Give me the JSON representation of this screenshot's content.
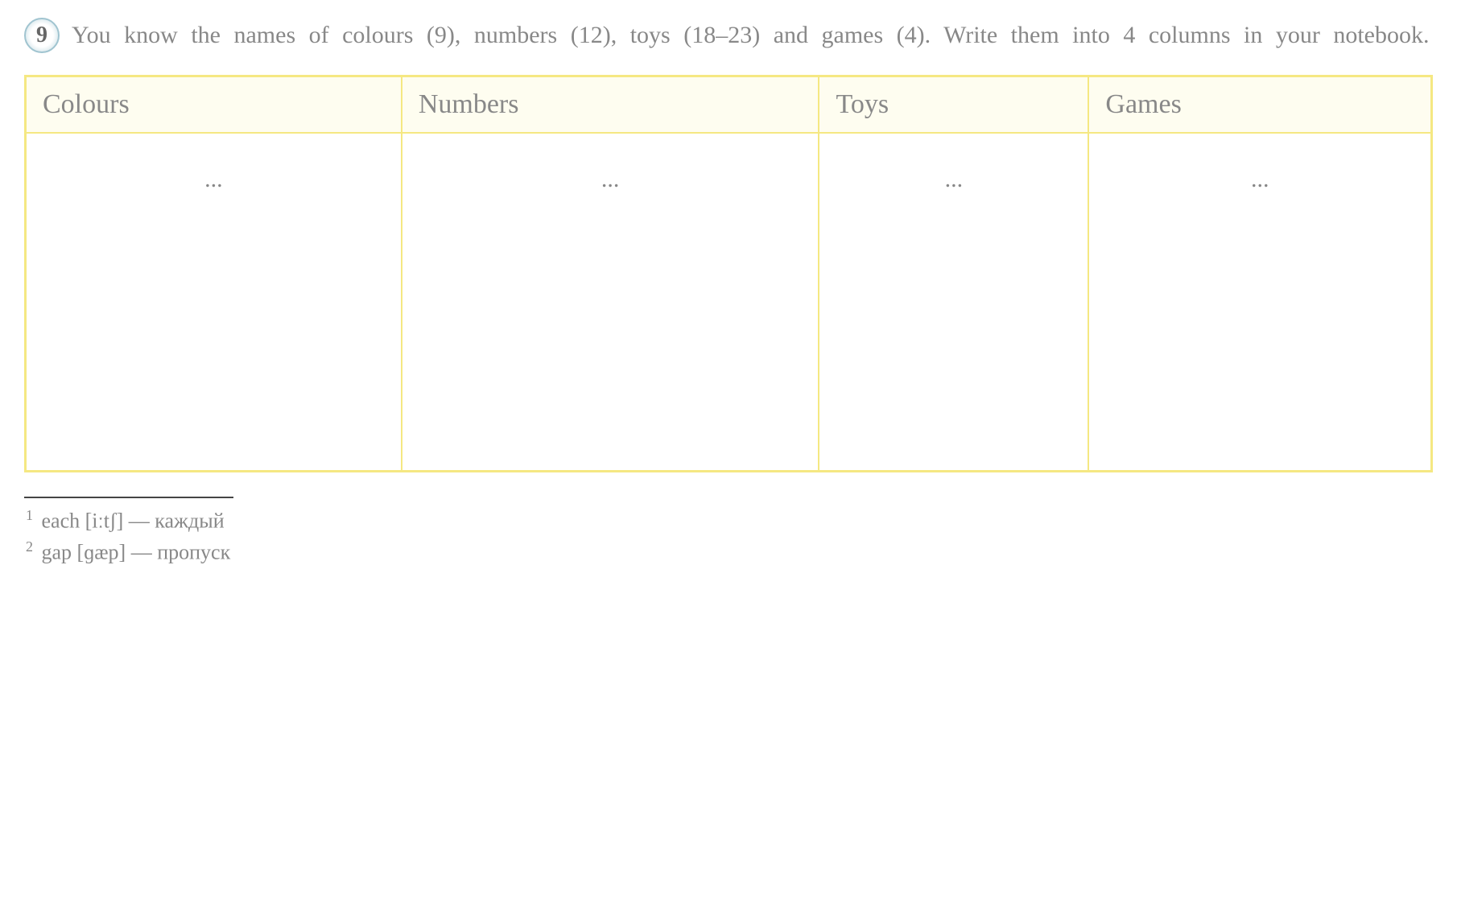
{
  "exercise": {
    "number": "9",
    "instruction": "You know the names of colours (9), numbers (12), toys (18–23) and games (4). Write them into 4 columns in your notebook."
  },
  "table": {
    "columns": [
      "Colours",
      "Numbers",
      "Toys",
      "Games"
    ],
    "rows": [
      [
        "...",
        "...",
        "...",
        "..."
      ]
    ],
    "header_bg_color": "#fefdf0",
    "border_color": "#f5e882",
    "header_fontsize": 34,
    "cell_fontsize": 30,
    "text_color": "#888888"
  },
  "footnotes": [
    {
      "number": "1",
      "word": "each",
      "phonetic": "[iːtʃ]",
      "separator": "—",
      "translation": "каждый"
    },
    {
      "number": "2",
      "word": "gap",
      "phonetic": "[ɡæp]",
      "separator": "—",
      "translation": "пропуск"
    }
  ],
  "styling": {
    "background_color": "#ffffff",
    "text_color": "#888888",
    "exercise_badge_gradient_start": "#ffffff",
    "exercise_badge_gradient_end": "#b8d4dd",
    "exercise_badge_border": "#a0c4d0",
    "instruction_fontsize": 30,
    "footnote_fontsize": 26,
    "footnote_divider_color": "#444444"
  }
}
